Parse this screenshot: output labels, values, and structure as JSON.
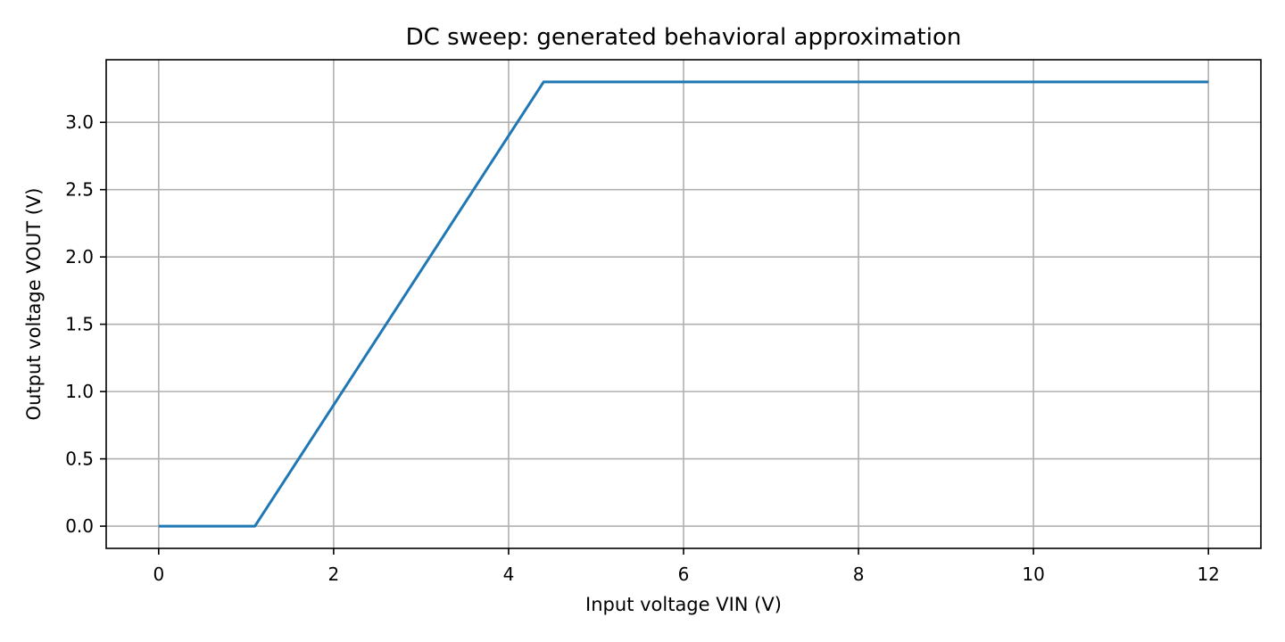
{
  "chart_data": {
    "type": "line",
    "title": "DC sweep: generated behavioral approximation",
    "xlabel": "Input voltage VIN (V)",
    "ylabel": "Output voltage VOUT (V)",
    "xlim": [
      -0.6,
      12.6
    ],
    "ylim": [
      -0.165,
      3.465
    ],
    "xticks": [
      0,
      2,
      4,
      6,
      8,
      10,
      12
    ],
    "xtick_labels": [
      "0",
      "2",
      "4",
      "6",
      "8",
      "10",
      "12"
    ],
    "yticks": [
      0.0,
      0.5,
      1.0,
      1.5,
      2.0,
      2.5,
      3.0
    ],
    "ytick_labels": [
      "0.0",
      "0.5",
      "1.0",
      "1.5",
      "2.0",
      "2.5",
      "3.0"
    ],
    "grid": true,
    "series": [
      {
        "color": "#1f77b4",
        "x": [
          0,
          1.1,
          4.4,
          12
        ],
        "y": [
          0,
          0,
          3.3,
          3.3
        ]
      }
    ]
  }
}
